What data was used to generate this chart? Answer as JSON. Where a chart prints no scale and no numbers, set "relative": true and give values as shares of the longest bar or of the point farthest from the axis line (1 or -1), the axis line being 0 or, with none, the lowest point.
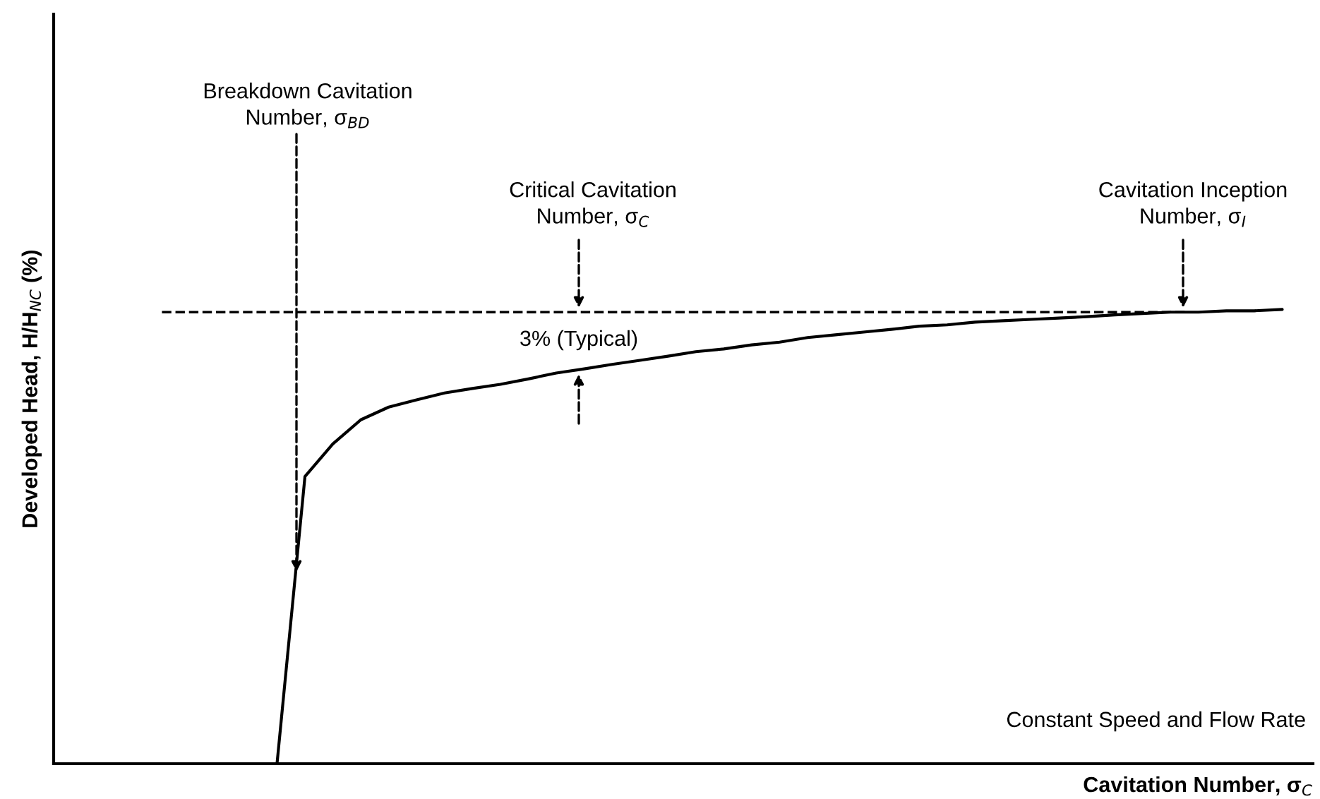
{
  "chart_data": {
    "type": "line",
    "relative": true,
    "xlabel": "Cavitation Number, σ$_{C}$",
    "ylabel": "Developed Head, H/H$_{NC}$ (%)",
    "categories": [
      null,
      null,
      null,
      null,
      null,
      null,
      null,
      null,
      null,
      null,
      null,
      null,
      null,
      null,
      null,
      null,
      null,
      null,
      null,
      null,
      null,
      null,
      null,
      null,
      null,
      null,
      null,
      null,
      null,
      null,
      null,
      null,
      null,
      null,
      null,
      null,
      null,
      null,
      null,
      null,
      null,
      null,
      null,
      null,
      null
    ],
    "series": [
      {
        "color": "#000000",
        "values": [
          null,
          null,
          null,
          null,
          null,
          null,
          null,
          null,
          0,
          0.632,
          0.704,
          0.757,
          0.785,
          0.801,
          0.816,
          0.826,
          0.835,
          0.847,
          0.86,
          0.869,
          0.879,
          0.888,
          0.897,
          0.907,
          0.913,
          0.922,
          0.928,
          0.938,
          0.944,
          0.95,
          0.956,
          0.963,
          0.966,
          0.972,
          0.975,
          0.978,
          0.981,
          0.984,
          0.988,
          0.991,
          0.994,
          0.994,
          0.997,
          0.997,
          1.0
        ]
      }
    ],
    "ref_lines": [
      {
        "axis": "y",
        "value": 0.994,
        "line_style": "dashed",
        "color": "#000000"
      }
    ],
    "annotations": [
      "Breakdown Cavitation\nNumber, σ$_{BD}$",
      "Critical Cavitation\nNumber, σ$_{C}$",
      "Cavitation Inception\nNumber, σ$_{I}$",
      "3% (Typical)",
      "Constant Speed and Flow Rate"
    ]
  }
}
